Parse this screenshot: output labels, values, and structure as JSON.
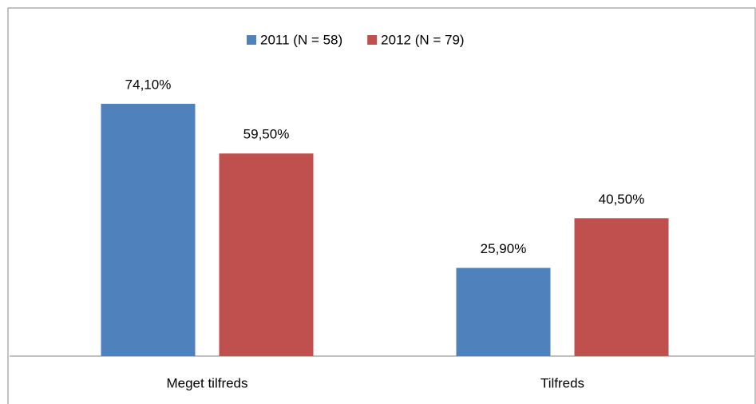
{
  "chart_data": {
    "type": "bar",
    "categories": [
      "Meget tilfreds",
      "Tilfreds"
    ],
    "series": [
      {
        "name": "2011 (N = 58)",
        "color": "#4f81bd",
        "values": [
          74.1,
          25.9
        ],
        "value_labels": [
          "74,10%",
          "25,90%"
        ]
      },
      {
        "name": "2012 (N = 79)",
        "color": "#c0504d",
        "values": [
          59.5,
          40.5
        ],
        "value_labels": [
          "59,50%",
          "40,50%"
        ]
      }
    ],
    "legend": "top"
  }
}
